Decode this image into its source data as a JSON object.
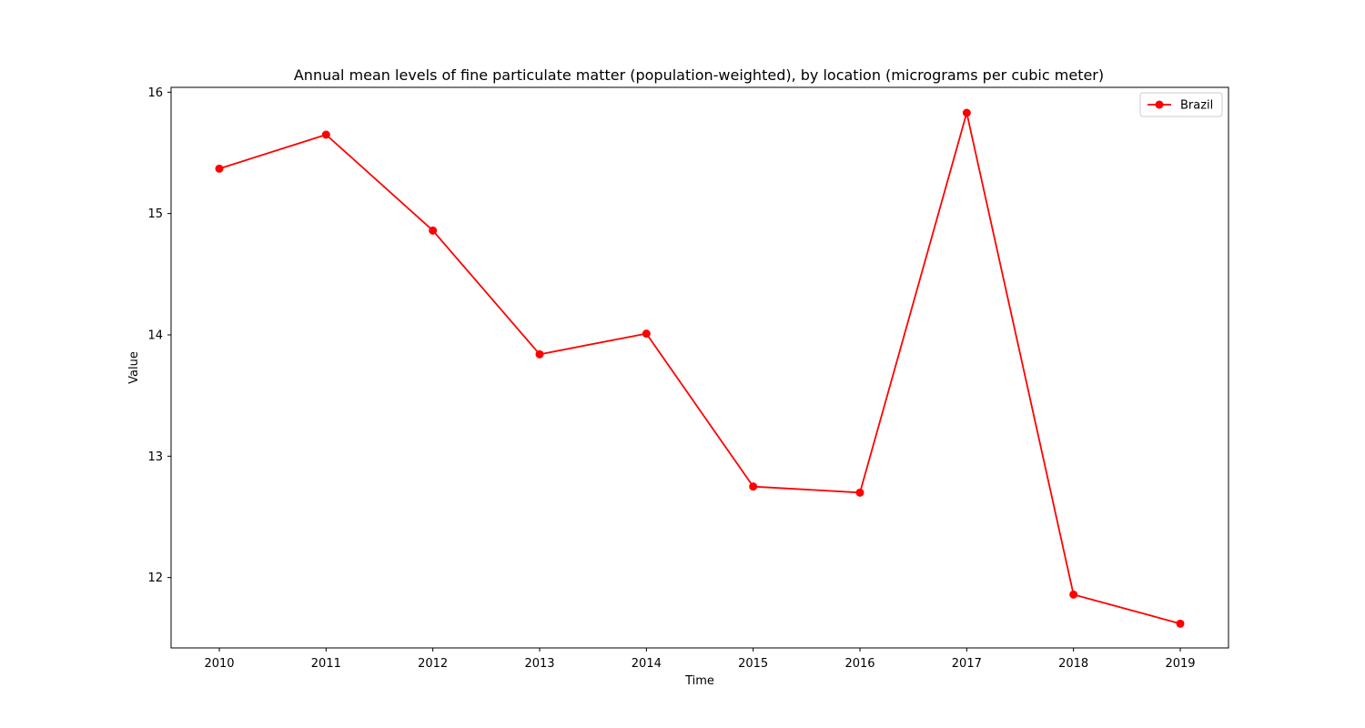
{
  "chart_data": {
    "type": "line",
    "title": "Annual mean levels of fine particulate matter (population-weighted), by location (micrograms per cubic meter)",
    "xlabel": "Time",
    "ylabel": "Value",
    "x": [
      "2010",
      "2011",
      "2012",
      "2013",
      "2014",
      "2015",
      "2016",
      "2017",
      "2018",
      "2019"
    ],
    "series": [
      {
        "name": "Brazil",
        "color": "#ff0000",
        "values": [
          15.37,
          15.65,
          14.86,
          13.84,
          14.01,
          12.75,
          12.7,
          15.83,
          11.86,
          11.62
        ]
      }
    ],
    "ylim": [
      11.42,
      16.04
    ],
    "yticks": [
      12,
      13,
      14,
      15,
      16
    ],
    "grid": false,
    "legend_position": "top-right"
  }
}
